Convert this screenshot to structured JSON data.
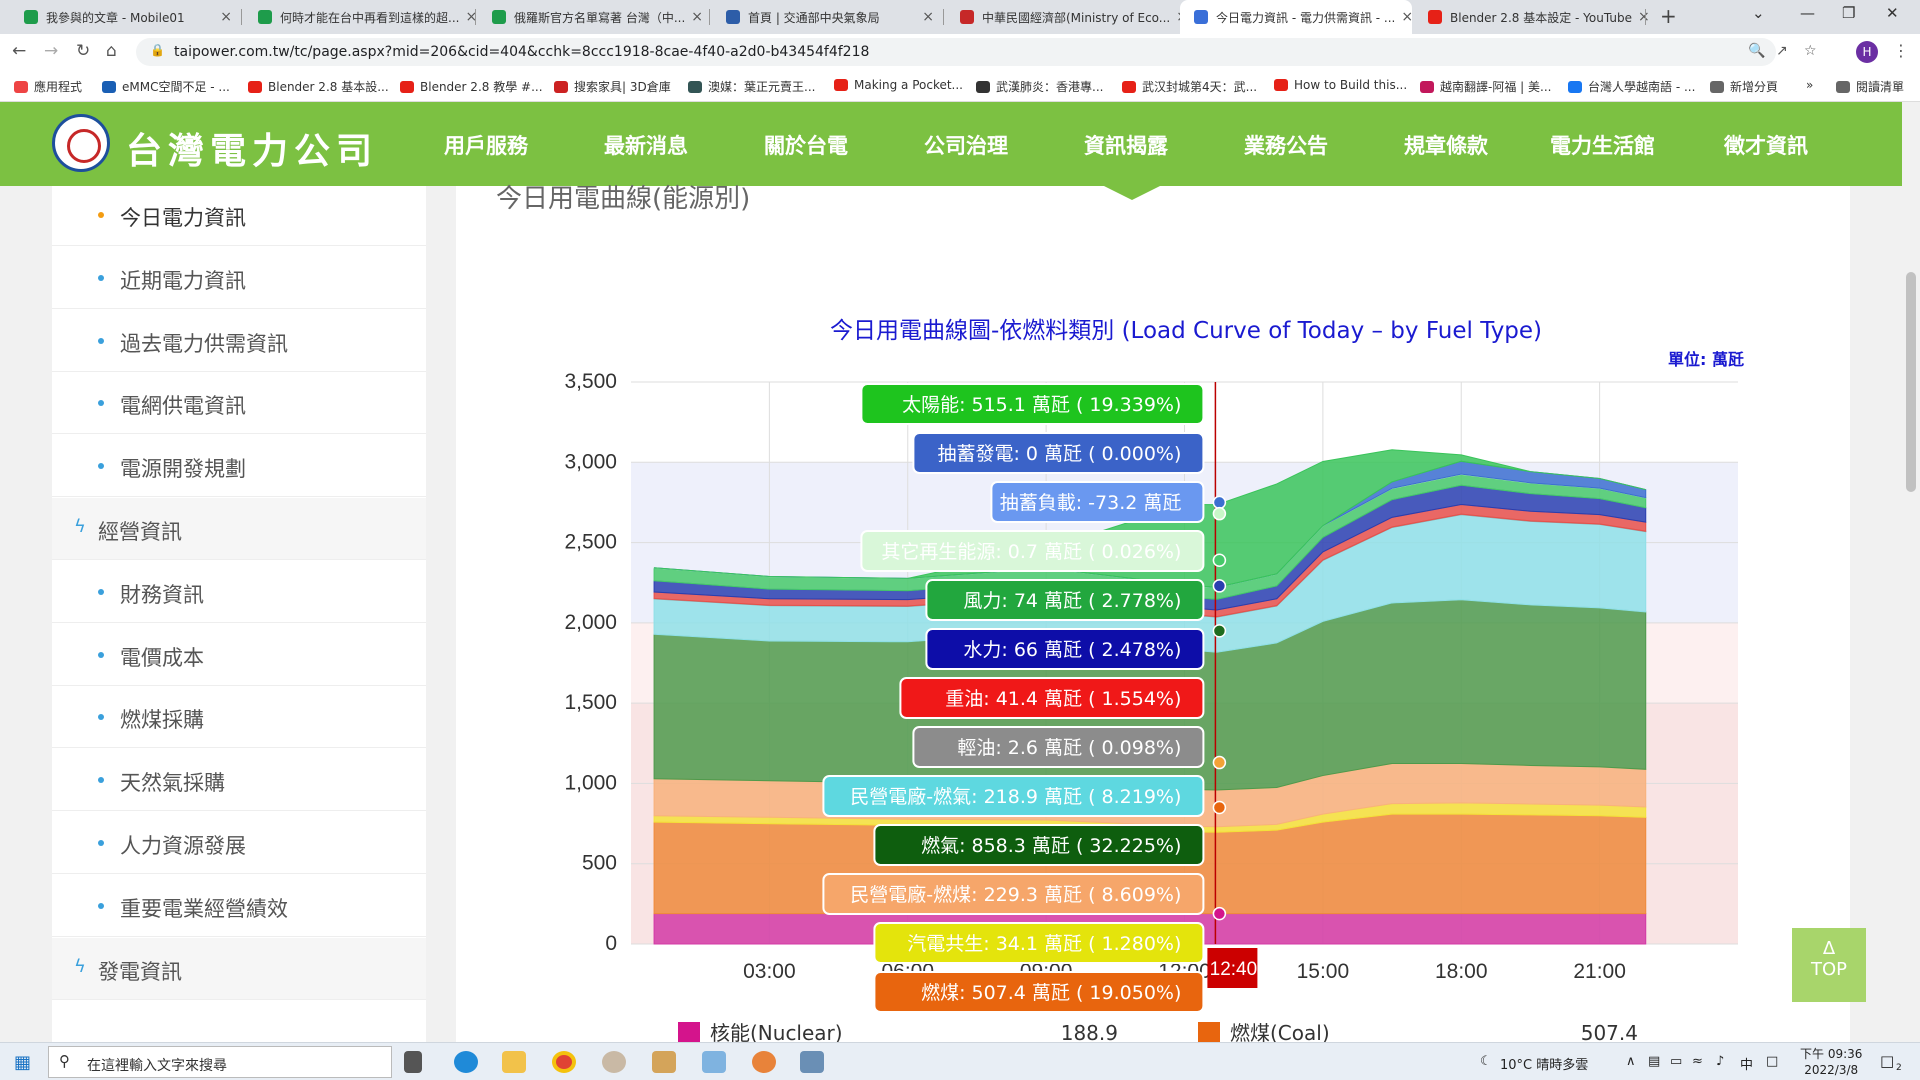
{
  "browser": {
    "tabs": [
      {
        "label": "我參與的文章 - Mobile01",
        "color": "#1e9c4b"
      },
      {
        "label": "何時才能在台中再看到這樣的超...",
        "color": "#1e9c4b"
      },
      {
        "label": "俄羅斯官方名單寫著 台灣（中...",
        "color": "#1e9c4b"
      },
      {
        "label": "首頁 | 交通部中央氣象局",
        "color": "#2d5da8"
      },
      {
        "label": "中華民國經濟部(Ministry of Eco...",
        "color": "#c62828"
      },
      {
        "label": "今日電力資訊 - 電力供需資訊 - ...",
        "color": "#3a6fd8"
      },
      {
        "label": "Blender 2.8 基本設定 - YouTube",
        "color": "#e62117"
      }
    ],
    "url": "taipower.com.tw/tc/page.aspx?mid=206&cid=404&cchk=8ccc1918-8cae-4f40-a2d0-b43454f4f218",
    "profile_initial": "H",
    "bookmarks": [
      "應用程式",
      "eMMC空間不足 - ...",
      "Blender 2.8 基本設...",
      "Blender 2.8 教學 #...",
      "搜索家具| 3D倉庫",
      "澳媒：葉正元賣王...",
      "Making a Pocket...",
      "武漢肺炎：香港專...",
      "武汉封城第4天：武...",
      "How to Build this...",
      "越南翻譯-阿福 | 美...",
      "台灣人學越南語 - ...",
      "新增分頁",
      "閱讀清單"
    ]
  },
  "site": {
    "logo": "台灣電力公司",
    "nav": [
      "用戶服務",
      "最新消息",
      "關於台電",
      "公司治理",
      "資訊揭露",
      "業務公告",
      "規章條款",
      "電力生活館",
      "徵才資訊"
    ],
    "sidebar": [
      {
        "label": "今日電力資訊",
        "kind": "sub",
        "active": true
      },
      {
        "label": "近期電力資訊",
        "kind": "sub"
      },
      {
        "label": "過去電力供需資訊",
        "kind": "sub"
      },
      {
        "label": "電網供電資訊",
        "kind": "sub"
      },
      {
        "label": "電源開發規劃",
        "kind": "sub"
      },
      {
        "label": "經營資訊",
        "kind": "cat"
      },
      {
        "label": "財務資訊",
        "kind": "sub"
      },
      {
        "label": "電價成本",
        "kind": "sub"
      },
      {
        "label": "燃煤採購",
        "kind": "sub"
      },
      {
        "label": "天然氣採購",
        "kind": "sub"
      },
      {
        "label": "人力資源發展",
        "kind": "sub"
      },
      {
        "label": "重要電業經營績效",
        "kind": "sub"
      },
      {
        "label": "發電資訊",
        "kind": "cat"
      }
    ],
    "section_title": "今日用電曲線(能源別)",
    "top_button": "TOP"
  },
  "chart_data": {
    "type": "area",
    "title": "今日用電曲線圖-依燃料類別 (Load Curve of Today – by Fuel Type)",
    "unit_label": "單位: 萬瓩",
    "ylim": [
      0,
      3500
    ],
    "yticks": [
      "0",
      "500",
      "1,000",
      "1,500",
      "2,000",
      "2,500",
      "3,000",
      "3,500"
    ],
    "xticks": [
      "03:00",
      "06:00",
      "09:00",
      "12:00",
      "15:00",
      "18:00",
      "21:00"
    ],
    "cursor_time": "12:40",
    "x_hours": [
      0.5,
      3,
      6,
      9,
      12,
      12.7,
      14,
      15,
      16.5,
      18,
      19.5,
      21,
      22
    ],
    "series": [
      {
        "name": "核能(Nuclear)",
        "color": "#d33aa6",
        "values": [
          189,
          189,
          189,
          189,
          189,
          189,
          189,
          189,
          189,
          189,
          189,
          189,
          189
        ]
      },
      {
        "name": "燃煤(Coal)",
        "color": "#ef8a3c",
        "values": [
          570,
          560,
          550,
          545,
          510,
          507,
          520,
          570,
          620,
          620,
          615,
          610,
          600
        ]
      },
      {
        "name": "汽電共生",
        "color": "#f4e23a",
        "values": [
          40,
          40,
          38,
          38,
          35,
          34,
          36,
          50,
          65,
          70,
          68,
          66,
          64
        ]
      },
      {
        "name": "民營電廠-燃煤",
        "color": "#f8b27c",
        "values": [
          230,
          228,
          225,
          230,
          229,
          229,
          230,
          240,
          250,
          245,
          240,
          238,
          235
        ]
      },
      {
        "name": "燃氣",
        "color": "#4f9a4c",
        "values": [
          900,
          870,
          880,
          940,
          870,
          858,
          900,
          960,
          1000,
          1020,
          1000,
          990,
          980
        ]
      },
      {
        "name": "民營電廠-燃氣",
        "color": "#8fe0e8",
        "values": [
          220,
          220,
          220,
          220,
          219,
          219,
          230,
          380,
          470,
          530,
          520,
          520,
          500
        ]
      },
      {
        "name": "輕油",
        "color": "#999999",
        "values": [
          3,
          3,
          3,
          3,
          3,
          3,
          3,
          3,
          3,
          3,
          3,
          3,
          3
        ]
      },
      {
        "name": "重油",
        "color": "#e8504a",
        "values": [
          40,
          40,
          40,
          41,
          41,
          41,
          42,
          50,
          60,
          60,
          60,
          58,
          56
        ]
      },
      {
        "name": "水力",
        "color": "#2a3fb0",
        "values": [
          70,
          60,
          55,
          60,
          66,
          66,
          80,
          90,
          110,
          120,
          110,
          100,
          90
        ]
      },
      {
        "name": "風力",
        "color": "#46c96a",
        "values": [
          80,
          78,
          76,
          75,
          74,
          74,
          74,
          72,
          70,
          68,
          66,
          64,
          62
        ]
      },
      {
        "name": "其它再生能源",
        "color": "#c8f7c8",
        "values": [
          1,
          1,
          1,
          1,
          1,
          1,
          1,
          1,
          1,
          1,
          1,
          1,
          1
        ]
      },
      {
        "name": "抽蓄發電",
        "color": "#3c6fd0",
        "values": [
          0,
          0,
          0,
          0,
          0,
          0,
          0,
          0,
          40,
          80,
          70,
          60,
          50
        ]
      },
      {
        "name": "太陽能",
        "color": "#39c45a",
        "values": [
          0,
          0,
          0,
          120,
          500,
          515,
          560,
          400,
          200,
          40,
          0,
          0,
          0
        ]
      }
    ],
    "tooltip": [
      {
        "text": "太陽能: 515.1 萬瓩 ( 19.339%)",
        "color": "#1ec41e",
        "textcolor": "#ffffff"
      },
      {
        "text": "抽蓄發電: 0 萬瓩 ( 0.000%)",
        "color": "#3b63c8",
        "textcolor": "#ffffff"
      },
      {
        "text": "抽蓄負載: -73.2 萬瓩",
        "color": "#6a98f0",
        "textcolor": "#ffffff"
      },
      {
        "text": "其它再生能源: 0.7 萬瓩 ( 0.026%)",
        "color": "#d9f7d9",
        "textcolor": "#ffffff"
      },
      {
        "text": "風力: 74 萬瓩 ( 2.778%)",
        "color": "#22a73e",
        "textcolor": "#ffffff"
      },
      {
        "text": "水力: 66 萬瓩 ( 2.478%)",
        "color": "#0d0da8",
        "textcolor": "#ffffff"
      },
      {
        "text": "重油: 41.4 萬瓩 ( 1.554%)",
        "color": "#f01818",
        "textcolor": "#ffffff"
      },
      {
        "text": "輕油: 2.6 萬瓩 ( 0.098%)",
        "color": "#8c8c8c",
        "textcolor": "#ffffff"
      },
      {
        "text": "民營電廠-燃氣: 218.9 萬瓩 ( 8.219%)",
        "color": "#5ed8e0",
        "textcolor": "#ffffff"
      },
      {
        "text": "燃氣: 858.3 萬瓩 ( 32.225%)",
        "color": "#0e5e0e",
        "textcolor": "#ffffff"
      },
      {
        "text": "民營電廠-燃煤: 229.3 萬瓩 ( 8.609%)",
        "color": "#f6a66a",
        "textcolor": "#ffffff"
      },
      {
        "text": "汽電共生: 34.1 萬瓩 ( 1.280%)",
        "color": "#e4e40c",
        "textcolor": "#ffffff"
      },
      {
        "text": "燃煤: 507.4 萬瓩 ( 19.050%)",
        "color": "#e8650e",
        "textcolor": "#ffffff"
      }
    ],
    "legend": [
      {
        "name": "核能(Nuclear)",
        "color": "#d4148c",
        "value": "188.9"
      },
      {
        "name": "燃煤(Coal)",
        "color": "#e8650e",
        "value": "507.4"
      }
    ]
  },
  "taskbar": {
    "search_placeholder": "在這裡輸入文字來搜尋",
    "weather": "10°C  晴時多雲",
    "ime": "中",
    "time": "下午 09:36",
    "date": "2022/3/8",
    "notif_count": "2"
  }
}
